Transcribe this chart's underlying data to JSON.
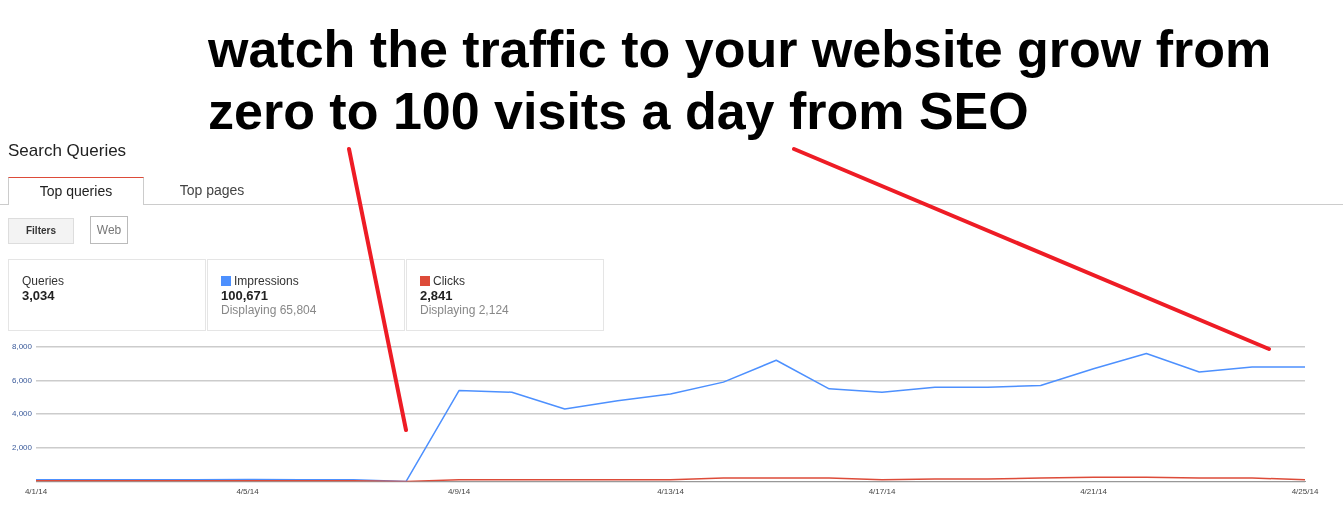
{
  "chart_data": {
    "type": "line",
    "title": "Search Queries",
    "categories": [
      "4/1/14",
      null,
      null,
      null,
      "4/5/14",
      null,
      null,
      null,
      "4/9/14",
      null,
      null,
      null,
      "4/13/14",
      null,
      null,
      null,
      "4/17/14",
      null,
      null,
      null,
      "4/21/14",
      null,
      null,
      null,
      "4/25/14"
    ],
    "series": [
      {
        "name": "Impressions",
        "color": "#4d90fe",
        "values": [
          100,
          100,
          100,
          100,
          120,
          100,
          100,
          0,
          5400,
          5300,
          4300,
          4800,
          5200,
          5900,
          7200,
          5500,
          5300,
          5600,
          5600,
          5700,
          6700,
          7600,
          6500,
          6800,
          6800
        ]
      },
      {
        "name": "Clicks",
        "color": "#dd4b39",
        "values": [
          40,
          40,
          40,
          40,
          40,
          40,
          40,
          0,
          100,
          100,
          100,
          100,
          100,
          200,
          200,
          200,
          100,
          150,
          150,
          200,
          250,
          250,
          200,
          200,
          100
        ]
      }
    ],
    "ylim": [
      0,
      8000
    ],
    "yticks": [
      {
        "value": 0,
        "label": null
      },
      {
        "value": 2000,
        "label": "2,000"
      },
      {
        "value": 4000,
        "label": "4,000"
      },
      {
        "value": 6000,
        "label": "6,000"
      },
      {
        "value": 8000,
        "label": "8,000"
      }
    ],
    "grid": "y",
    "legend": "top left",
    "marker": "none",
    "line_style": "solid",
    "annotations": [
      "watch the traffic to your website grow from zero to 100 visits a day from SEO",
      "Top queries",
      "Top pages",
      "Filters",
      "Web",
      "Queries",
      "3,034",
      "100,671",
      "Displaying 65,804",
      "2,841",
      "Displaying 2,124"
    ]
  }
}
